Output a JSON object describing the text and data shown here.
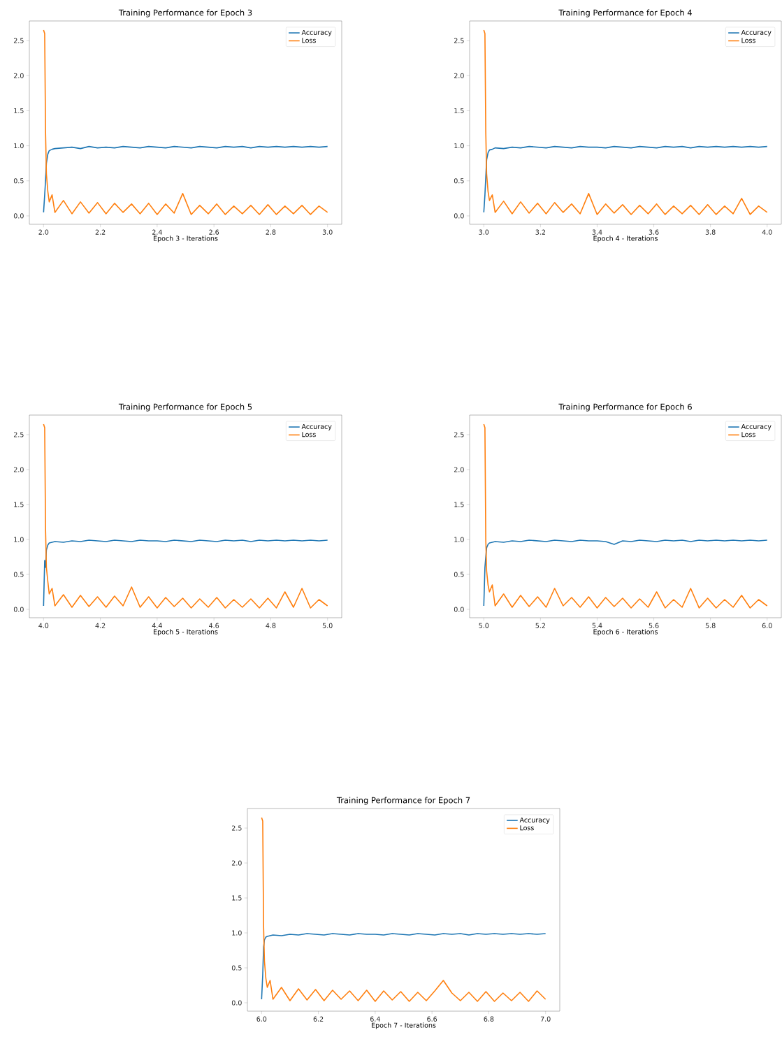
{
  "chart_data": [
    {
      "type": "line",
      "title": "Training Performance for Epoch 3",
      "xlabel": "Epoch 3 - Iterations",
      "x": [
        2.0,
        2.004,
        2.007,
        2.01,
        2.015,
        2.02,
        2.03,
        2.04,
        2.07,
        2.1,
        2.13,
        2.16,
        2.19,
        2.22,
        2.25,
        2.28,
        2.31,
        2.34,
        2.37,
        2.4,
        2.43,
        2.46,
        2.49,
        2.52,
        2.55,
        2.58,
        2.61,
        2.64,
        2.67,
        2.7,
        2.73,
        2.76,
        2.79,
        2.82,
        2.85,
        2.88,
        2.91,
        2.94,
        2.97,
        3.0
      ],
      "series": [
        {
          "name": "Accuracy",
          "color": "#1f77b4",
          "values": [
            0.05,
            0.3,
            0.5,
            0.75,
            0.88,
            0.93,
            0.95,
            0.96,
            0.97,
            0.98,
            0.96,
            0.99,
            0.97,
            0.98,
            0.97,
            0.99,
            0.98,
            0.97,
            0.99,
            0.98,
            0.97,
            0.99,
            0.98,
            0.97,
            0.99,
            0.98,
            0.97,
            0.99,
            0.98,
            0.99,
            0.97,
            0.99,
            0.98,
            0.99,
            0.98,
            0.99,
            0.98,
            0.99,
            0.98,
            0.99
          ]
        },
        {
          "name": "Loss",
          "color": "#ff7f0e",
          "values": [
            2.65,
            2.6,
            1.2,
            0.6,
            0.35,
            0.2,
            0.3,
            0.05,
            0.22,
            0.03,
            0.2,
            0.04,
            0.19,
            0.03,
            0.18,
            0.05,
            0.17,
            0.03,
            0.18,
            0.02,
            0.17,
            0.04,
            0.32,
            0.02,
            0.15,
            0.03,
            0.17,
            0.02,
            0.14,
            0.03,
            0.15,
            0.02,
            0.16,
            0.02,
            0.14,
            0.03,
            0.15,
            0.02,
            0.14,
            0.05
          ]
        }
      ],
      "xlim": [
        1.95,
        3.05
      ],
      "ylim": [
        -0.12,
        2.78
      ],
      "xticks": [
        {
          "value": 2.0,
          "label": "2.0"
        },
        {
          "value": 2.2,
          "label": "2.2"
        },
        {
          "value": 2.4,
          "label": "2.4"
        },
        {
          "value": 2.6,
          "label": "2.6"
        },
        {
          "value": 2.8,
          "label": "2.8"
        },
        {
          "value": 3.0,
          "label": "3.0"
        }
      ],
      "yticks": [
        {
          "value": 0,
          "label": "0.0"
        },
        {
          "value": 0.5,
          "label": "0.5"
        },
        {
          "value": 1,
          "label": "1.0"
        },
        {
          "value": 1.5,
          "label": "1.5"
        },
        {
          "value": 2,
          "label": "2.0"
        },
        {
          "value": 2.5,
          "label": "2.5"
        }
      ],
      "legend": "top right"
    },
    {
      "type": "line",
      "title": "Training Performance for Epoch 4",
      "xlabel": "Epoch 4 - Iterations",
      "x": [
        3.0,
        3.004,
        3.007,
        3.01,
        3.015,
        3.02,
        3.03,
        3.04,
        3.07,
        3.1,
        3.13,
        3.16,
        3.19,
        3.22,
        3.25,
        3.28,
        3.31,
        3.34,
        3.37,
        3.4,
        3.43,
        3.46,
        3.49,
        3.52,
        3.55,
        3.58,
        3.61,
        3.64,
        3.67,
        3.7,
        3.73,
        3.76,
        3.79,
        3.82,
        3.85,
        3.88,
        3.91,
        3.94,
        3.97,
        4.0
      ],
      "series": [
        {
          "name": "Accuracy",
          "color": "#1f77b4",
          "values": [
            0.05,
            0.3,
            0.55,
            0.8,
            0.9,
            0.94,
            0.95,
            0.97,
            0.96,
            0.98,
            0.97,
            0.99,
            0.98,
            0.97,
            0.99,
            0.98,
            0.97,
            0.99,
            0.98,
            0.98,
            0.97,
            0.99,
            0.98,
            0.97,
            0.99,
            0.98,
            0.97,
            0.99,
            0.98,
            0.99,
            0.97,
            0.99,
            0.98,
            0.99,
            0.98,
            0.99,
            0.98,
            0.99,
            0.98,
            0.99
          ]
        },
        {
          "name": "Loss",
          "color": "#ff7f0e",
          "values": [
            2.65,
            2.6,
            1.2,
            0.6,
            0.35,
            0.22,
            0.3,
            0.05,
            0.21,
            0.03,
            0.2,
            0.04,
            0.18,
            0.03,
            0.19,
            0.05,
            0.17,
            0.03,
            0.32,
            0.02,
            0.17,
            0.04,
            0.16,
            0.02,
            0.15,
            0.03,
            0.17,
            0.02,
            0.14,
            0.03,
            0.15,
            0.02,
            0.16,
            0.02,
            0.14,
            0.03,
            0.25,
            0.02,
            0.14,
            0.05
          ]
        }
      ],
      "xlim": [
        2.95,
        4.05
      ],
      "ylim": [
        -0.12,
        2.78
      ],
      "xticks": [
        {
          "value": 3.0,
          "label": "3.0"
        },
        {
          "value": 3.2,
          "label": "3.2"
        },
        {
          "value": 3.4,
          "label": "3.4"
        },
        {
          "value": 3.6,
          "label": "3.6"
        },
        {
          "value": 3.8,
          "label": "3.8"
        },
        {
          "value": 4.0,
          "label": "4.0"
        }
      ],
      "yticks": [
        {
          "value": 0,
          "label": "0.0"
        },
        {
          "value": 0.5,
          "label": "0.5"
        },
        {
          "value": 1,
          "label": "1.0"
        },
        {
          "value": 1.5,
          "label": "1.5"
        },
        {
          "value": 2,
          "label": "2.0"
        },
        {
          "value": 2.5,
          "label": "2.5"
        }
      ],
      "legend": "top right"
    },
    {
      "type": "line",
      "title": "Training Performance for Epoch 5",
      "xlabel": "Epoch 5 - Iterations",
      "x": [
        4.0,
        4.004,
        4.007,
        4.01,
        4.015,
        4.02,
        4.03,
        4.04,
        4.07,
        4.1,
        4.13,
        4.16,
        4.19,
        4.22,
        4.25,
        4.28,
        4.31,
        4.34,
        4.37,
        4.4,
        4.43,
        4.46,
        4.49,
        4.52,
        4.55,
        4.58,
        4.61,
        4.64,
        4.67,
        4.7,
        4.73,
        4.76,
        4.79,
        4.82,
        4.85,
        4.88,
        4.91,
        4.94,
        4.97,
        5.0
      ],
      "series": [
        {
          "name": "Accuracy",
          "color": "#1f77b4",
          "values": [
            0.05,
            0.7,
            0.6,
            0.85,
            0.92,
            0.95,
            0.96,
            0.97,
            0.96,
            0.98,
            0.97,
            0.99,
            0.98,
            0.97,
            0.99,
            0.98,
            0.97,
            0.99,
            0.98,
            0.98,
            0.97,
            0.99,
            0.98,
            0.97,
            0.99,
            0.98,
            0.97,
            0.99,
            0.98,
            0.99,
            0.97,
            0.99,
            0.98,
            0.99,
            0.98,
            0.99,
            0.98,
            0.99,
            0.98,
            0.99
          ]
        },
        {
          "name": "Loss",
          "color": "#ff7f0e",
          "values": [
            2.65,
            2.6,
            1.15,
            0.6,
            0.4,
            0.22,
            0.3,
            0.05,
            0.21,
            0.03,
            0.2,
            0.04,
            0.18,
            0.03,
            0.19,
            0.05,
            0.32,
            0.03,
            0.18,
            0.02,
            0.17,
            0.04,
            0.16,
            0.02,
            0.15,
            0.03,
            0.17,
            0.02,
            0.14,
            0.03,
            0.15,
            0.02,
            0.16,
            0.02,
            0.25,
            0.03,
            0.3,
            0.02,
            0.14,
            0.05
          ]
        }
      ],
      "xlim": [
        3.95,
        5.05
      ],
      "ylim": [
        -0.12,
        2.78
      ],
      "xticks": [
        {
          "value": 4.0,
          "label": "4.0"
        },
        {
          "value": 4.2,
          "label": "4.2"
        },
        {
          "value": 4.4,
          "label": "4.4"
        },
        {
          "value": 4.6,
          "label": "4.6"
        },
        {
          "value": 4.8,
          "label": "4.8"
        },
        {
          "value": 5.0,
          "label": "5.0"
        }
      ],
      "yticks": [
        {
          "value": 0,
          "label": "0.0"
        },
        {
          "value": 0.5,
          "label": "0.5"
        },
        {
          "value": 1,
          "label": "1.0"
        },
        {
          "value": 1.5,
          "label": "1.5"
        },
        {
          "value": 2,
          "label": "2.0"
        },
        {
          "value": 2.5,
          "label": "2.5"
        }
      ],
      "legend": "top right"
    },
    {
      "type": "line",
      "title": "Training Performance for Epoch 6",
      "xlabel": "Epoch 6 - Iterations",
      "x": [
        5.0,
        5.004,
        5.007,
        5.01,
        5.015,
        5.02,
        5.03,
        5.04,
        5.07,
        5.1,
        5.13,
        5.16,
        5.19,
        5.22,
        5.25,
        5.28,
        5.31,
        5.34,
        5.37,
        5.4,
        5.43,
        5.46,
        5.49,
        5.52,
        5.55,
        5.58,
        5.61,
        5.64,
        5.67,
        5.7,
        5.73,
        5.76,
        5.79,
        5.82,
        5.85,
        5.88,
        5.91,
        5.94,
        5.97,
        6.0
      ],
      "series": [
        {
          "name": "Accuracy",
          "color": "#1f77b4",
          "values": [
            0.05,
            0.6,
            0.75,
            0.88,
            0.93,
            0.95,
            0.96,
            0.97,
            0.96,
            0.98,
            0.97,
            0.99,
            0.98,
            0.97,
            0.99,
            0.98,
            0.97,
            0.99,
            0.98,
            0.98,
            0.97,
            0.93,
            0.98,
            0.97,
            0.99,
            0.98,
            0.97,
            0.99,
            0.98,
            0.99,
            0.97,
            0.99,
            0.98,
            0.99,
            0.98,
            0.99,
            0.98,
            0.99,
            0.98,
            0.99
          ]
        },
        {
          "name": "Loss",
          "color": "#ff7f0e",
          "values": [
            2.65,
            2.6,
            1.0,
            0.55,
            0.35,
            0.25,
            0.35,
            0.05,
            0.22,
            0.03,
            0.2,
            0.04,
            0.18,
            0.03,
            0.3,
            0.05,
            0.17,
            0.03,
            0.18,
            0.02,
            0.17,
            0.04,
            0.16,
            0.02,
            0.15,
            0.03,
            0.25,
            0.02,
            0.14,
            0.03,
            0.3,
            0.02,
            0.16,
            0.02,
            0.14,
            0.03,
            0.2,
            0.02,
            0.14,
            0.05
          ]
        }
      ],
      "xlim": [
        4.95,
        6.05
      ],
      "ylim": [
        -0.12,
        2.78
      ],
      "xticks": [
        {
          "value": 5.0,
          "label": "5.0"
        },
        {
          "value": 5.2,
          "label": "5.2"
        },
        {
          "value": 5.4,
          "label": "5.4"
        },
        {
          "value": 5.6,
          "label": "5.6"
        },
        {
          "value": 5.8,
          "label": "5.8"
        },
        {
          "value": 6.0,
          "label": "6.0"
        }
      ],
      "yticks": [
        {
          "value": 0,
          "label": "0.0"
        },
        {
          "value": 0.5,
          "label": "0.5"
        },
        {
          "value": 1,
          "label": "1.0"
        },
        {
          "value": 1.5,
          "label": "1.5"
        },
        {
          "value": 2,
          "label": "2.0"
        },
        {
          "value": 2.5,
          "label": "2.5"
        }
      ],
      "legend": "top right"
    },
    {
      "type": "line",
      "title": "Training Performance for Epoch 7",
      "xlabel": "Epoch 7 - Iterations",
      "x": [
        6.0,
        6.004,
        6.007,
        6.01,
        6.015,
        6.02,
        6.03,
        6.04,
        6.07,
        6.1,
        6.13,
        6.16,
        6.19,
        6.22,
        6.25,
        6.28,
        6.31,
        6.34,
        6.37,
        6.4,
        6.43,
        6.46,
        6.49,
        6.52,
        6.55,
        6.58,
        6.61,
        6.64,
        6.67,
        6.7,
        6.73,
        6.76,
        6.79,
        6.82,
        6.85,
        6.88,
        6.91,
        6.94,
        6.97,
        7.0
      ],
      "series": [
        {
          "name": "Accuracy",
          "color": "#1f77b4",
          "values": [
            0.05,
            0.4,
            0.8,
            0.9,
            0.94,
            0.95,
            0.96,
            0.97,
            0.96,
            0.98,
            0.97,
            0.99,
            0.98,
            0.97,
            0.99,
            0.98,
            0.97,
            0.99,
            0.98,
            0.98,
            0.97,
            0.99,
            0.98,
            0.97,
            0.99,
            0.98,
            0.97,
            0.99,
            0.98,
            0.99,
            0.97,
            0.99,
            0.98,
            0.99,
            0.98,
            0.99,
            0.98,
            0.99,
            0.98,
            0.99
          ]
        },
        {
          "name": "Loss",
          "color": "#ff7f0e",
          "values": [
            2.65,
            2.6,
            1.1,
            0.6,
            0.35,
            0.22,
            0.32,
            0.05,
            0.22,
            0.03,
            0.2,
            0.04,
            0.19,
            0.03,
            0.18,
            0.05,
            0.17,
            0.03,
            0.18,
            0.02,
            0.17,
            0.04,
            0.16,
            0.02,
            0.15,
            0.03,
            0.17,
            0.32,
            0.14,
            0.03,
            0.15,
            0.02,
            0.16,
            0.02,
            0.14,
            0.03,
            0.15,
            0.02,
            0.17,
            0.05
          ]
        }
      ],
      "xlim": [
        5.95,
        7.05
      ],
      "ylim": [
        -0.12,
        2.78
      ],
      "xticks": [
        {
          "value": 6.0,
          "label": "6.0"
        },
        {
          "value": 6.2,
          "label": "6.2"
        },
        {
          "value": 6.4,
          "label": "6.4"
        },
        {
          "value": 6.6,
          "label": "6.6"
        },
        {
          "value": 6.8,
          "label": "6.8"
        },
        {
          "value": 7.0,
          "label": "7.0"
        }
      ],
      "yticks": [
        {
          "value": 0,
          "label": "0.0"
        },
        {
          "value": 0.5,
          "label": "0.5"
        },
        {
          "value": 1,
          "label": "1.0"
        },
        {
          "value": 1.5,
          "label": "1.5"
        },
        {
          "value": 2,
          "label": "2.0"
        },
        {
          "value": 2.5,
          "label": "2.5"
        }
      ],
      "legend": "top right"
    }
  ]
}
